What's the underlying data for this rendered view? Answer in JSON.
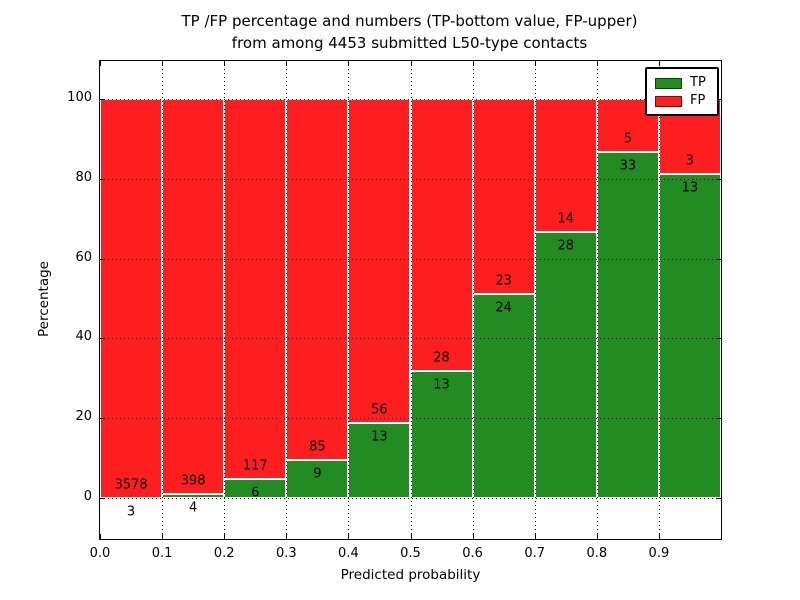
{
  "title": {
    "line1": "TP /FP percentage and numbers (TP-bottom value, FP-upper)",
    "line2": "from among 4453 submitted L50-type contacts"
  },
  "axes": {
    "xlabel": "Predicted probability",
    "ylabel": "Percentage",
    "x_tick_labels": [
      "0.0",
      "0.1",
      "0.2",
      "0.3",
      "0.4",
      "0.5",
      "0.6",
      "0.7",
      "0.8",
      "0.9"
    ],
    "y_tick_labels": [
      "0",
      "20",
      "40",
      "60",
      "80",
      "100"
    ]
  },
  "legend": {
    "position": "upper right",
    "items": [
      {
        "label": "TP",
        "color": "#228b22"
      },
      {
        "label": "FP",
        "color": "#fd1f1f"
      }
    ]
  },
  "chart_data": {
    "type": "bar",
    "stacked": true,
    "title": "TP /FP percentage and numbers (TP-bottom value, FP-upper) from among 4453 submitted L50-type contacts",
    "xlabel": "Predicted probability",
    "ylabel": "Percentage",
    "total_contacts": 4453,
    "bin_width": 0.1,
    "bin_starts": [
      0.0,
      0.1,
      0.2,
      0.3,
      0.4,
      0.5,
      0.6,
      0.7,
      0.8,
      0.9
    ],
    "categories": [
      "0.0-0.1",
      "0.1-0.2",
      "0.2-0.3",
      "0.3-0.4",
      "0.4-0.5",
      "0.5-0.6",
      "0.6-0.7",
      "0.7-0.8",
      "0.8-0.9",
      "0.9-1.0"
    ],
    "series": [
      {
        "name": "TP",
        "color": "#228b22",
        "values": [
          3,
          4,
          6,
          9,
          13,
          13,
          24,
          28,
          33,
          13
        ]
      },
      {
        "name": "FP",
        "color": "#fd1f1f",
        "values": [
          3578,
          398,
          117,
          85,
          56,
          28,
          23,
          14,
          5,
          3
        ]
      }
    ],
    "tp_percent_of_bin": [
      0.08,
      1.0,
      4.88,
      9.57,
      18.84,
      31.71,
      51.06,
      66.67,
      86.84,
      81.25
    ],
    "units": "percent stacked to 100",
    "xlim": [
      0.0,
      1.0
    ],
    "ylim": [
      -10.5,
      110
    ],
    "y_ticks": [
      0,
      20,
      40,
      60,
      80,
      100
    ],
    "grid": true,
    "grid_style": "dotted",
    "bar_edge_color": "#ffffff",
    "legend_position": "upper right"
  }
}
